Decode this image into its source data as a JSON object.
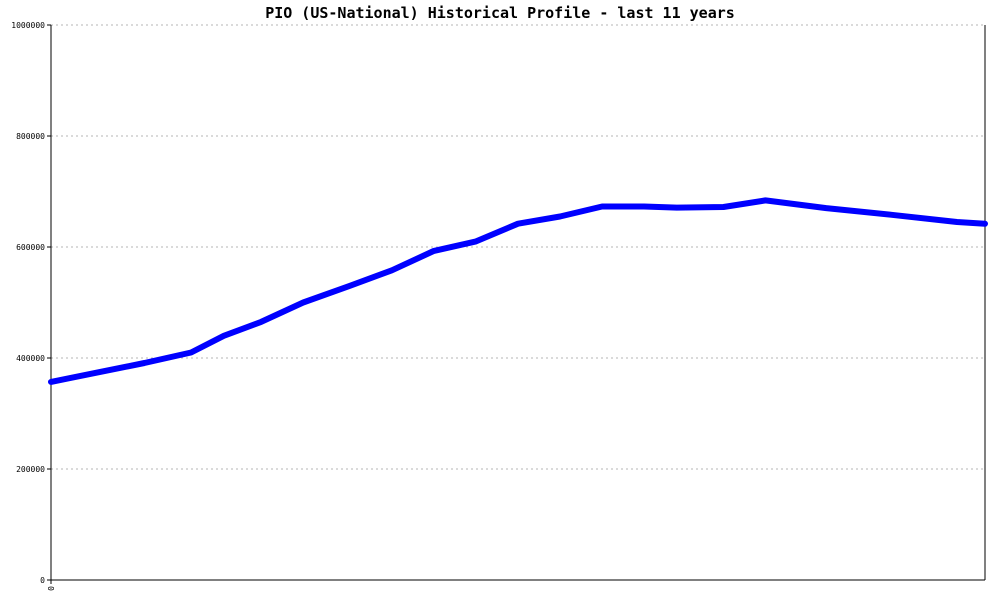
{
  "chart_data": {
    "type": "line",
    "title": "PIO (US-National) Historical Profile - last 11 years",
    "xlabel": "",
    "ylabel": "",
    "ylim": [
      0,
      1000000
    ],
    "yticks": [
      0,
      200000,
      400000,
      600000,
      800000,
      1000000
    ],
    "ytick_labels": [
      "0",
      "200000",
      "400000",
      "600000",
      "800000",
      "1000000"
    ],
    "x_tick_labels": [
      "0"
    ],
    "grid": true,
    "series": [
      {
        "color": "#0000ff",
        "points": [
          {
            "x": 0.0,
            "y": 357000
          },
          {
            "x": 0.5,
            "y": 374000
          },
          {
            "x": 1.0,
            "y": 391000
          },
          {
            "x": 1.5,
            "y": 410000
          },
          {
            "x": 1.85,
            "y": 440000
          },
          {
            "x": 2.25,
            "y": 465000
          },
          {
            "x": 2.7,
            "y": 500000
          },
          {
            "x": 3.2,
            "y": 530000
          },
          {
            "x": 3.65,
            "y": 558000
          },
          {
            "x": 4.1,
            "y": 593000
          },
          {
            "x": 4.55,
            "y": 610000
          },
          {
            "x": 5.0,
            "y": 642000
          },
          {
            "x": 5.45,
            "y": 655000
          },
          {
            "x": 5.9,
            "y": 673000
          },
          {
            "x": 6.35,
            "y": 673000
          },
          {
            "x": 6.7,
            "y": 671000
          },
          {
            "x": 7.2,
            "y": 672000
          },
          {
            "x": 7.65,
            "y": 684000
          },
          {
            "x": 8.3,
            "y": 670000
          },
          {
            "x": 9.0,
            "y": 658000
          },
          {
            "x": 9.7,
            "y": 645000
          },
          {
            "x": 10.0,
            "y": 642000
          }
        ]
      }
    ],
    "xlim": [
      0,
      10
    ]
  }
}
